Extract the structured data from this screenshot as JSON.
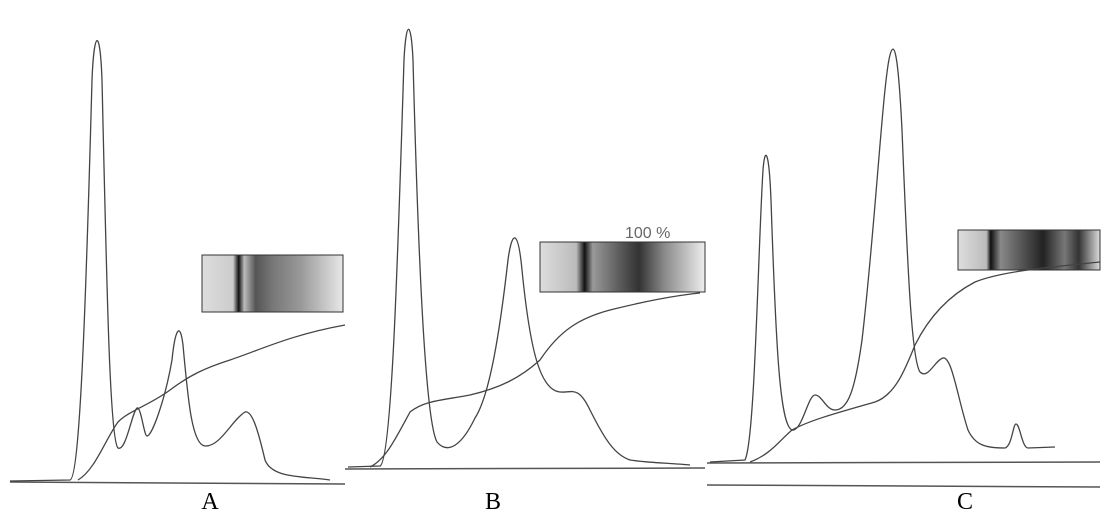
{
  "panels": [
    {
      "label": "A"
    },
    {
      "label": "B",
      "annotation": "100 %"
    },
    {
      "label": "C"
    }
  ]
}
